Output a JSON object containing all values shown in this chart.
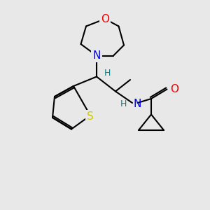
{
  "bg_color": "#e8e8e8",
  "bond_color": "#000000",
  "bond_lw": 1.5,
  "atom_colors": {
    "N": "#0000ee",
    "O": "#ee0000",
    "S": "#cccc00",
    "H_label": "#008080"
  },
  "font_size_atom": 11,
  "font_size_H": 9
}
